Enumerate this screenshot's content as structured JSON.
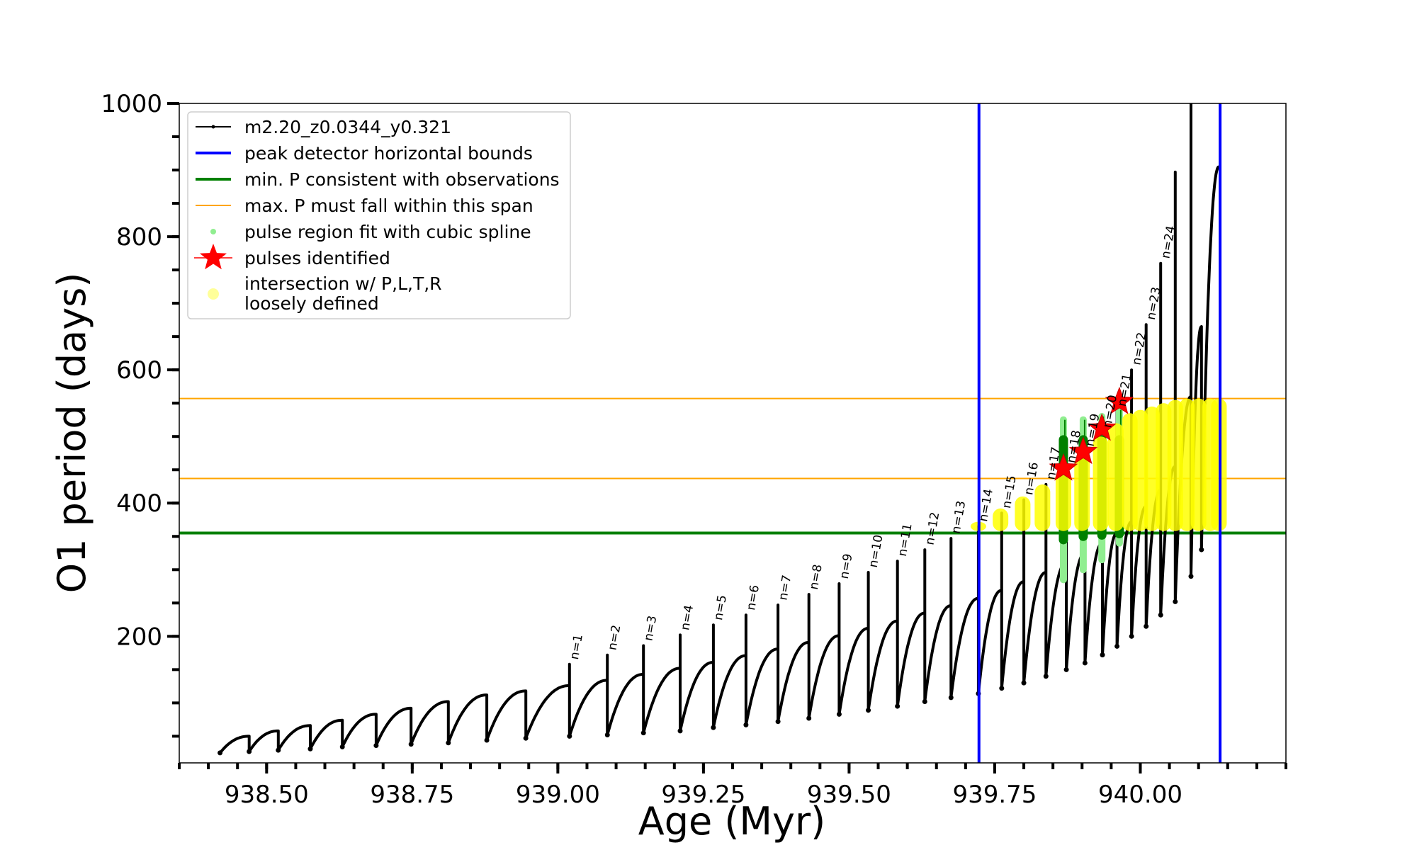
{
  "chart_data": {
    "type": "line",
    "xlabel": "Age (Myr)",
    "ylabel": "O1 period (days)",
    "xlim": [
      938.35,
      940.25
    ],
    "ylim": [
      10,
      1000
    ],
    "x_ticks": [
      938.5,
      938.75,
      939.0,
      939.25,
      939.5,
      939.75,
      940.0
    ],
    "x_tick_labels": [
      "938.50",
      "938.75",
      "939.00",
      "939.25",
      "939.50",
      "939.75",
      "940.00"
    ],
    "x_minor_step": 0.05,
    "y_ticks": [
      200,
      400,
      600,
      800,
      1000
    ],
    "y_tick_labels": [
      "200",
      "400",
      "600",
      "800",
      "1000"
    ],
    "y_minor_step": 50,
    "grid": false,
    "legend_position": "top-left",
    "legend": [
      {
        "label": "m2.20_z0.0344_y0.321",
        "symbol": "line-dot",
        "color": "#000000"
      },
      {
        "label": "peak detector horizontal bounds",
        "symbol": "line",
        "color": "#0000ff"
      },
      {
        "label": "min. P consistent with observations",
        "symbol": "line",
        "color": "#008000"
      },
      {
        "label": "max. P must fall within this span",
        "symbol": "thin-line",
        "color": "#ffa500"
      },
      {
        "label": "pulse region fit with cubic spline",
        "symbol": "dot",
        "color": "#90ee90"
      },
      {
        "label": "pulses identified",
        "symbol": "star",
        "color": "#ff0000"
      },
      {
        "label": "intersection w/ P,L,T,R",
        "label2": "loosely defined",
        "symbol": "dot",
        "color": "#ffff99"
      }
    ],
    "series": [
      {
        "name": "m2.20_z0.0344_y0.321",
        "color": "#000000",
        "pulses": [
          {
            "t_start": 938.42,
            "p_min": 25,
            "p_max": 50
          },
          {
            "t_start": 938.47,
            "p_min": 27,
            "p_max": 58
          },
          {
            "t_start": 938.52,
            "p_min": 29,
            "p_max": 66
          },
          {
            "t_start": 938.575,
            "p_min": 31,
            "p_max": 74
          },
          {
            "t_start": 938.63,
            "p_min": 34,
            "p_max": 83
          },
          {
            "t_start": 938.688,
            "p_min": 36,
            "p_max": 92
          },
          {
            "t_start": 938.748,
            "p_min": 38,
            "p_max": 102
          },
          {
            "t_start": 938.812,
            "p_min": 40,
            "p_max": 112
          },
          {
            "t_start": 938.878,
            "p_min": 44,
            "p_max": 118
          },
          {
            "t_start": 938.945,
            "p_min": 47,
            "p_max": 126
          },
          {
            "t_start": 939.02,
            "p_min": 50,
            "p_max": 134,
            "spike": 158,
            "label": "n=1"
          },
          {
            "t_start": 939.085,
            "p_min": 52,
            "p_max": 143,
            "spike": 172,
            "label": "n=2"
          },
          {
            "t_start": 939.147,
            "p_min": 55,
            "p_max": 152,
            "spike": 186,
            "label": "n=3"
          },
          {
            "t_start": 939.21,
            "p_min": 58,
            "p_max": 161,
            "spike": 202,
            "label": "n=4"
          },
          {
            "t_start": 939.267,
            "p_min": 63,
            "p_max": 171,
            "spike": 217,
            "label": "n=5"
          },
          {
            "t_start": 939.323,
            "p_min": 67,
            "p_max": 181,
            "spike": 232,
            "label": "n=6"
          },
          {
            "t_start": 939.378,
            "p_min": 72,
            "p_max": 191,
            "spike": 247,
            "label": "n=7"
          },
          {
            "t_start": 939.431,
            "p_min": 77,
            "p_max": 201,
            "spike": 263,
            "label": "n=8"
          },
          {
            "t_start": 939.483,
            "p_min": 83,
            "p_max": 212,
            "spike": 279,
            "label": "n=9"
          },
          {
            "t_start": 939.533,
            "p_min": 89,
            "p_max": 223,
            "spike": 296,
            "label": "n=10"
          },
          {
            "t_start": 939.583,
            "p_min": 95,
            "p_max": 235,
            "spike": 313,
            "label": "n=11"
          },
          {
            "t_start": 939.63,
            "p_min": 102,
            "p_max": 246,
            "spike": 330,
            "label": "n=12"
          },
          {
            "t_start": 939.675,
            "p_min": 108,
            "p_max": 257,
            "spike": 347,
            "label": "n=13"
          },
          {
            "t_start": 939.722,
            "p_min": 114,
            "p_max": 269,
            "spike": 365,
            "label": "n=14"
          },
          {
            "t_start": 939.762,
            "p_min": 122,
            "p_max": 282,
            "spike": 385,
            "label": "n=15"
          },
          {
            "t_start": 939.8,
            "p_min": 130,
            "p_max": 296,
            "spike": 405,
            "label": "n=16"
          },
          {
            "t_start": 939.838,
            "p_min": 140,
            "p_max": 311,
            "spike": 428,
            "label": "n=17"
          },
          {
            "t_start": 939.873,
            "p_min": 150,
            "p_max": 325,
            "spike": 453,
            "label": "n=18"
          },
          {
            "t_start": 939.905,
            "p_min": 160,
            "p_max": 340,
            "spike": 478,
            "label": "n=19"
          },
          {
            "t_start": 939.935,
            "p_min": 172,
            "p_max": 355,
            "spike": 506,
            "label": "n=20"
          },
          {
            "t_start": 939.96,
            "p_min": 185,
            "p_max": 372,
            "spike": 538,
            "label": "n=21"
          },
          {
            "t_start": 939.985,
            "p_min": 200,
            "p_max": 395,
            "spike": 600,
            "label": "n=22"
          },
          {
            "t_start": 940.01,
            "p_min": 215,
            "p_max": 420,
            "spike": 668,
            "label": "n=23"
          },
          {
            "t_start": 940.035,
            "p_min": 232,
            "p_max": 455,
            "spike": 760,
            "label": "n=24"
          },
          {
            "t_start": 940.06,
            "p_min": 252,
            "p_max": 560,
            "spike": 897
          },
          {
            "t_start": 940.087,
            "p_min": 290,
            "p_max": 665,
            "spike": 1000
          },
          {
            "t_start": 940.105,
            "p_min": 330,
            "p_max": 905
          }
        ]
      }
    ],
    "vertical_lines": {
      "name": "peak detector horizontal bounds",
      "color": "#0000ff",
      "x": [
        939.723,
        940.137
      ]
    },
    "min_period_line": {
      "name": "min. P consistent with observations",
      "color": "#008000",
      "y": 355
    },
    "max_period_span": {
      "name": "max. P must fall within this span",
      "color": "#ffa500",
      "y": [
        437,
        557
      ]
    },
    "spline_regions": {
      "name": "pulse region fit with cubic spline",
      "color_light": "#90ee90",
      "color_dark": "#008000",
      "bars": [
        {
          "x": 939.868,
          "p_low": 285,
          "p_high": 525,
          "fit_low": 345,
          "fit_high": 495
        },
        {
          "x": 939.902,
          "p_low": 300,
          "p_high": 525,
          "fit_low": 350,
          "fit_high": 495
        },
        {
          "x": 939.934,
          "p_low": 315,
          "p_high": 530,
          "fit_low": 352,
          "fit_high": 495
        },
        {
          "x": 939.964,
          "p_low": 340,
          "p_high": 540,
          "fit_low": 354,
          "fit_high": 495
        }
      ]
    },
    "pulses_identified": {
      "name": "pulses identified",
      "color": "#ff0000",
      "points": [
        {
          "x": 939.868,
          "y": 452
        },
        {
          "x": 939.902,
          "y": 477
        },
        {
          "x": 939.934,
          "y": 512
        },
        {
          "x": 939.964,
          "y": 552
        }
      ]
    },
    "intersection_regions": {
      "name": "intersection w/ P,L,T,R loosely defined",
      "color": "#ffff00",
      "clusters": [
        {
          "x": 939.722,
          "y_low": 358,
          "y_high": 372
        },
        {
          "x": 939.76,
          "y_low": 358,
          "y_high": 392
        },
        {
          "x": 939.798,
          "y_low": 358,
          "y_high": 410
        },
        {
          "x": 939.832,
          "y_low": 358,
          "y_high": 428
        },
        {
          "x": 939.868,
          "y_low": 358,
          "y_high": 445
        },
        {
          "x": 939.9,
          "y_low": 358,
          "y_high": 470
        },
        {
          "x": 939.932,
          "y_low": 358,
          "y_high": 500
        },
        {
          "x": 939.958,
          "y_low": 358,
          "y_high": 520
        },
        {
          "x": 939.982,
          "y_low": 358,
          "y_high": 535
        },
        {
          "x": 940.0,
          "y_low": 358,
          "y_high": 540
        },
        {
          "x": 940.02,
          "y_low": 358,
          "y_high": 545
        },
        {
          "x": 940.04,
          "y_low": 358,
          "y_high": 550
        },
        {
          "x": 940.06,
          "y_low": 358,
          "y_high": 555
        },
        {
          "x": 940.08,
          "y_low": 358,
          "y_high": 557
        },
        {
          "x": 940.1,
          "y_low": 358,
          "y_high": 557
        },
        {
          "x": 940.12,
          "y_low": 358,
          "y_high": 557
        },
        {
          "x": 940.135,
          "y_low": 358,
          "y_high": 557
        }
      ]
    }
  }
}
